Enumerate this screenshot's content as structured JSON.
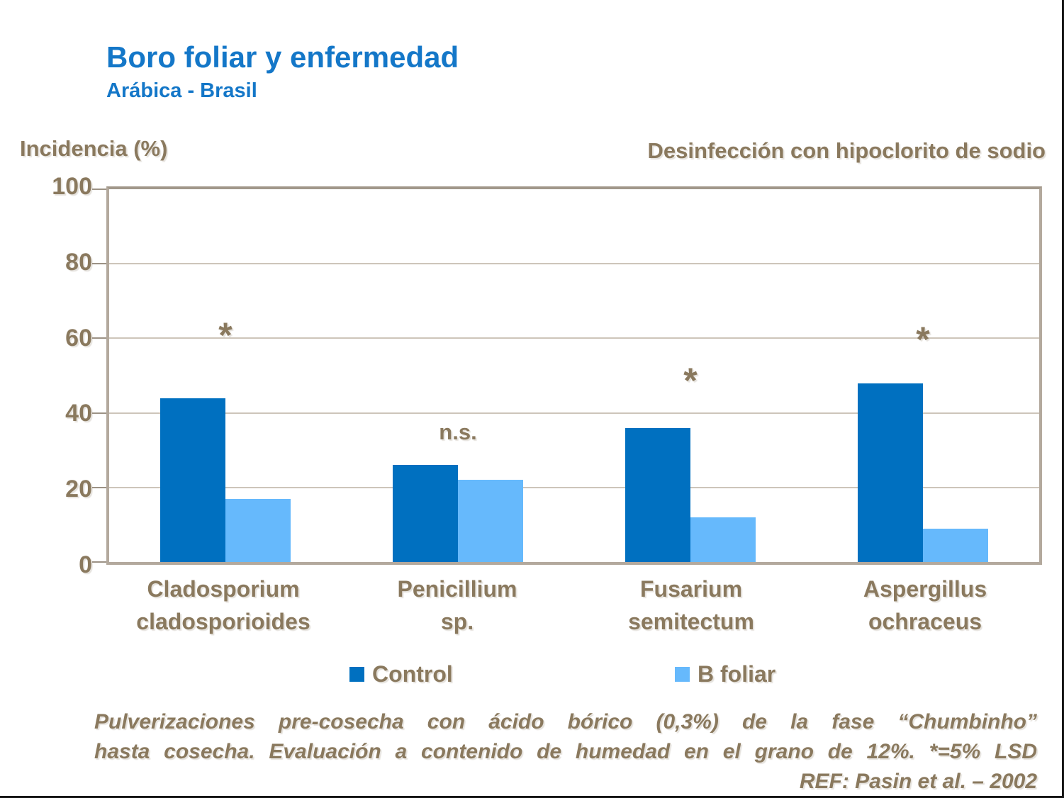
{
  "slide": {
    "title": "Boro foliar y enfermedad",
    "subtitle": "Arábica - Brasil",
    "y_axis_title": "Incidencia (%)",
    "right_heading": "Desinfección con hipoclorito de sodio"
  },
  "chart_data": {
    "type": "bar",
    "title": "Boro foliar y enfermedad",
    "subtitle": "Arábica - Brasil",
    "ylabel": "Incidencia (%)",
    "ylim": [
      0,
      100
    ],
    "yticks": [
      0,
      20,
      40,
      60,
      80,
      100
    ],
    "grid": true,
    "legend_position": "bottom",
    "categories": [
      {
        "line1": "Cladosporium",
        "line2": "cladosporioides"
      },
      {
        "line1": "Penicillium",
        "line2": "sp."
      },
      {
        "line1": "Fusarium",
        "line2": "semitectum"
      },
      {
        "line1": "Aspergillus",
        "line2": "ochraceus"
      }
    ],
    "series": [
      {
        "name": "Control",
        "color": "#0070C0",
        "values": [
          44,
          26,
          36,
          48
        ]
      },
      {
        "name": "B foliar",
        "color": "#66B9FC",
        "values": [
          17,
          22,
          12,
          9
        ]
      }
    ],
    "annotations": [
      {
        "text": "*",
        "y": 56
      },
      {
        "text": "n.s.",
        "y": 32
      },
      {
        "text": "*",
        "y": 44
      },
      {
        "text": "*",
        "y": 55
      }
    ]
  },
  "footer": {
    "line1": "Pulverizaciones pre-cosecha con ácido bórico (0,3%) de la fase “Chumbinho”",
    "line2": "hasta cosecha. Evaluación a contenido de humedad en el grano de 12%. *=5% LSD",
    "line3": "REF: Pasin et al. – 2002"
  },
  "colors": {
    "title_blue": "#1477C8",
    "text_brown": "#8A795E",
    "control_bar": "#0070C0",
    "b_foliar_bar": "#66B9FC",
    "gridline": "#CDC5BA",
    "plot_border": "#B3A99D"
  }
}
